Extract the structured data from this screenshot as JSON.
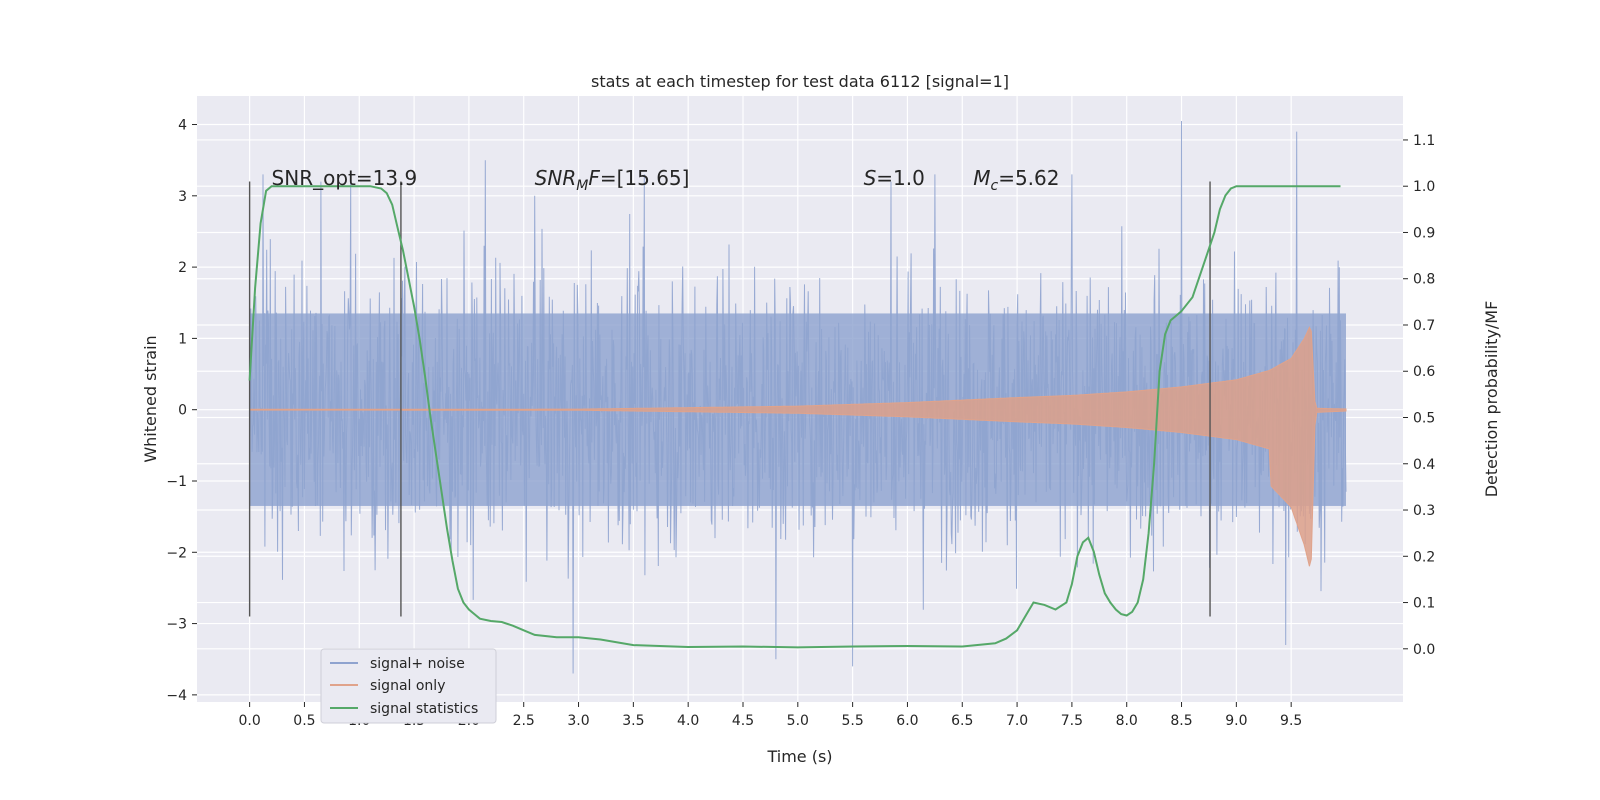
{
  "chart_data": {
    "type": "line",
    "title": "stats at each timestep for test data 6112 [signal=1]",
    "xlabel": "Time (s)",
    "ylabel": "Whitened strain",
    "y2label": "Detection probability/MF",
    "xlim": [
      -0.48,
      10.52
    ],
    "ylim": [
      -4.1,
      4.4
    ],
    "y2lim": [
      -0.115,
      1.195
    ],
    "x_ticks": [
      "0.0",
      "0.5",
      "1.0",
      "1.5",
      "2.0",
      "2.5",
      "3.0",
      "3.5",
      "4.0",
      "4.5",
      "5.0",
      "5.5",
      "6.0",
      "6.5",
      "7.0",
      "7.5",
      "8.0",
      "8.5",
      "9.0",
      "9.5"
    ],
    "y_ticks": [
      "4",
      "3",
      "2",
      "1",
      "0",
      "−1",
      "−2",
      "−3",
      "−4"
    ],
    "y2_ticks": [
      "0.0",
      "0.1",
      "0.2",
      "0.3",
      "0.4",
      "0.5",
      "0.6",
      "0.7",
      "0.8",
      "0.9",
      "1.0",
      "1.1"
    ],
    "grid": true,
    "legend_position": "lower-left",
    "annotations": [
      {
        "text": "SNR_opt=13.9",
        "x": 0.2,
        "y": 3.15
      },
      {
        "text": "SNRMF=[15.65]",
        "x": 2.6,
        "y": 3.15
      },
      {
        "text": "S=1.0",
        "x": 5.6,
        "y": 3.15
      },
      {
        "text": "Mc=5.62",
        "x": 6.6,
        "y": 3.15
      }
    ],
    "markers_x": [
      0.0,
      1.38,
      8.76
    ],
    "marker_range": [
      -2.9,
      3.2
    ],
    "noise_range": [
      0.0,
      10.0
    ],
    "noise_spike_times": [
      0.12,
      0.65,
      0.92,
      2.15,
      2.6,
      2.95,
      3.6,
      4.8,
      5.5,
      5.85,
      6.25,
      7.5,
      8.5,
      9.45,
      9.55
    ],
    "noise_spike_values": [
      3.3,
      3.2,
      3.2,
      3.5,
      3.0,
      -3.7,
      3.3,
      -3.5,
      -3.6,
      3.2,
      3.3,
      3.3,
      4.05,
      -3.3,
      3.9
    ],
    "signal_only_envelope": {
      "x": [
        0.0,
        3.0,
        5.0,
        6.0,
        7.0,
        7.5,
        8.0,
        8.5,
        9.0,
        9.3,
        9.5,
        9.62,
        9.68,
        9.72,
        10.0
      ],
      "amp": [
        0.005,
        0.008,
        0.05,
        0.1,
        0.17,
        0.2,
        0.25,
        0.32,
        0.42,
        0.55,
        0.72,
        1.0,
        1.2,
        0.02,
        0.01
      ]
    },
    "series": [
      {
        "name": "signal+ noise",
        "color": "#8fa3cf"
      },
      {
        "name": "signal only",
        "color": "#e0a38b"
      },
      {
        "name": "signal statistics",
        "color": "#55a868",
        "x": [
          0.0,
          0.05,
          0.1,
          0.15,
          0.2,
          0.3,
          0.5,
          0.8,
          1.0,
          1.1,
          1.2,
          1.25,
          1.3,
          1.35,
          1.4,
          1.45,
          1.5,
          1.55,
          1.6,
          1.65,
          1.7,
          1.75,
          1.8,
          1.85,
          1.9,
          1.95,
          2.0,
          2.05,
          2.1,
          2.2,
          2.3,
          2.4,
          2.5,
          2.6,
          2.8,
          3.0,
          3.2,
          3.5,
          4.0,
          4.5,
          5.0,
          5.5,
          6.0,
          6.5,
          6.8,
          6.9,
          7.0,
          7.1,
          7.15,
          7.25,
          7.35,
          7.45,
          7.5,
          7.55,
          7.6,
          7.65,
          7.7,
          7.75,
          7.8,
          7.85,
          7.9,
          7.95,
          8.0,
          8.05,
          8.1,
          8.15,
          8.2,
          8.25,
          8.3,
          8.35,
          8.4,
          8.45,
          8.5,
          8.6,
          8.7,
          8.8,
          8.85,
          8.9,
          8.95,
          9.0,
          9.1,
          9.3,
          9.5,
          9.7,
          9.95
        ],
        "values": [
          0.58,
          0.78,
          0.92,
          0.99,
          1.0,
          1.0,
          1.0,
          1.0,
          1.0,
          1.0,
          0.995,
          0.985,
          0.96,
          0.91,
          0.86,
          0.8,
          0.74,
          0.67,
          0.59,
          0.5,
          0.42,
          0.34,
          0.26,
          0.19,
          0.13,
          0.1,
          0.085,
          0.075,
          0.065,
          0.06,
          0.058,
          0.05,
          0.04,
          0.03,
          0.025,
          0.025,
          0.02,
          0.008,
          0.004,
          0.005,
          0.003,
          0.005,
          0.006,
          0.005,
          0.012,
          0.022,
          0.04,
          0.08,
          0.1,
          0.095,
          0.085,
          0.1,
          0.14,
          0.2,
          0.23,
          0.24,
          0.21,
          0.16,
          0.12,
          0.1,
          0.085,
          0.075,
          0.072,
          0.08,
          0.1,
          0.15,
          0.25,
          0.4,
          0.6,
          0.68,
          0.71,
          0.72,
          0.73,
          0.76,
          0.83,
          0.9,
          0.95,
          0.98,
          0.995,
          1.0,
          1.0,
          1.0,
          1.0,
          1.0,
          1.0
        ]
      }
    ]
  }
}
